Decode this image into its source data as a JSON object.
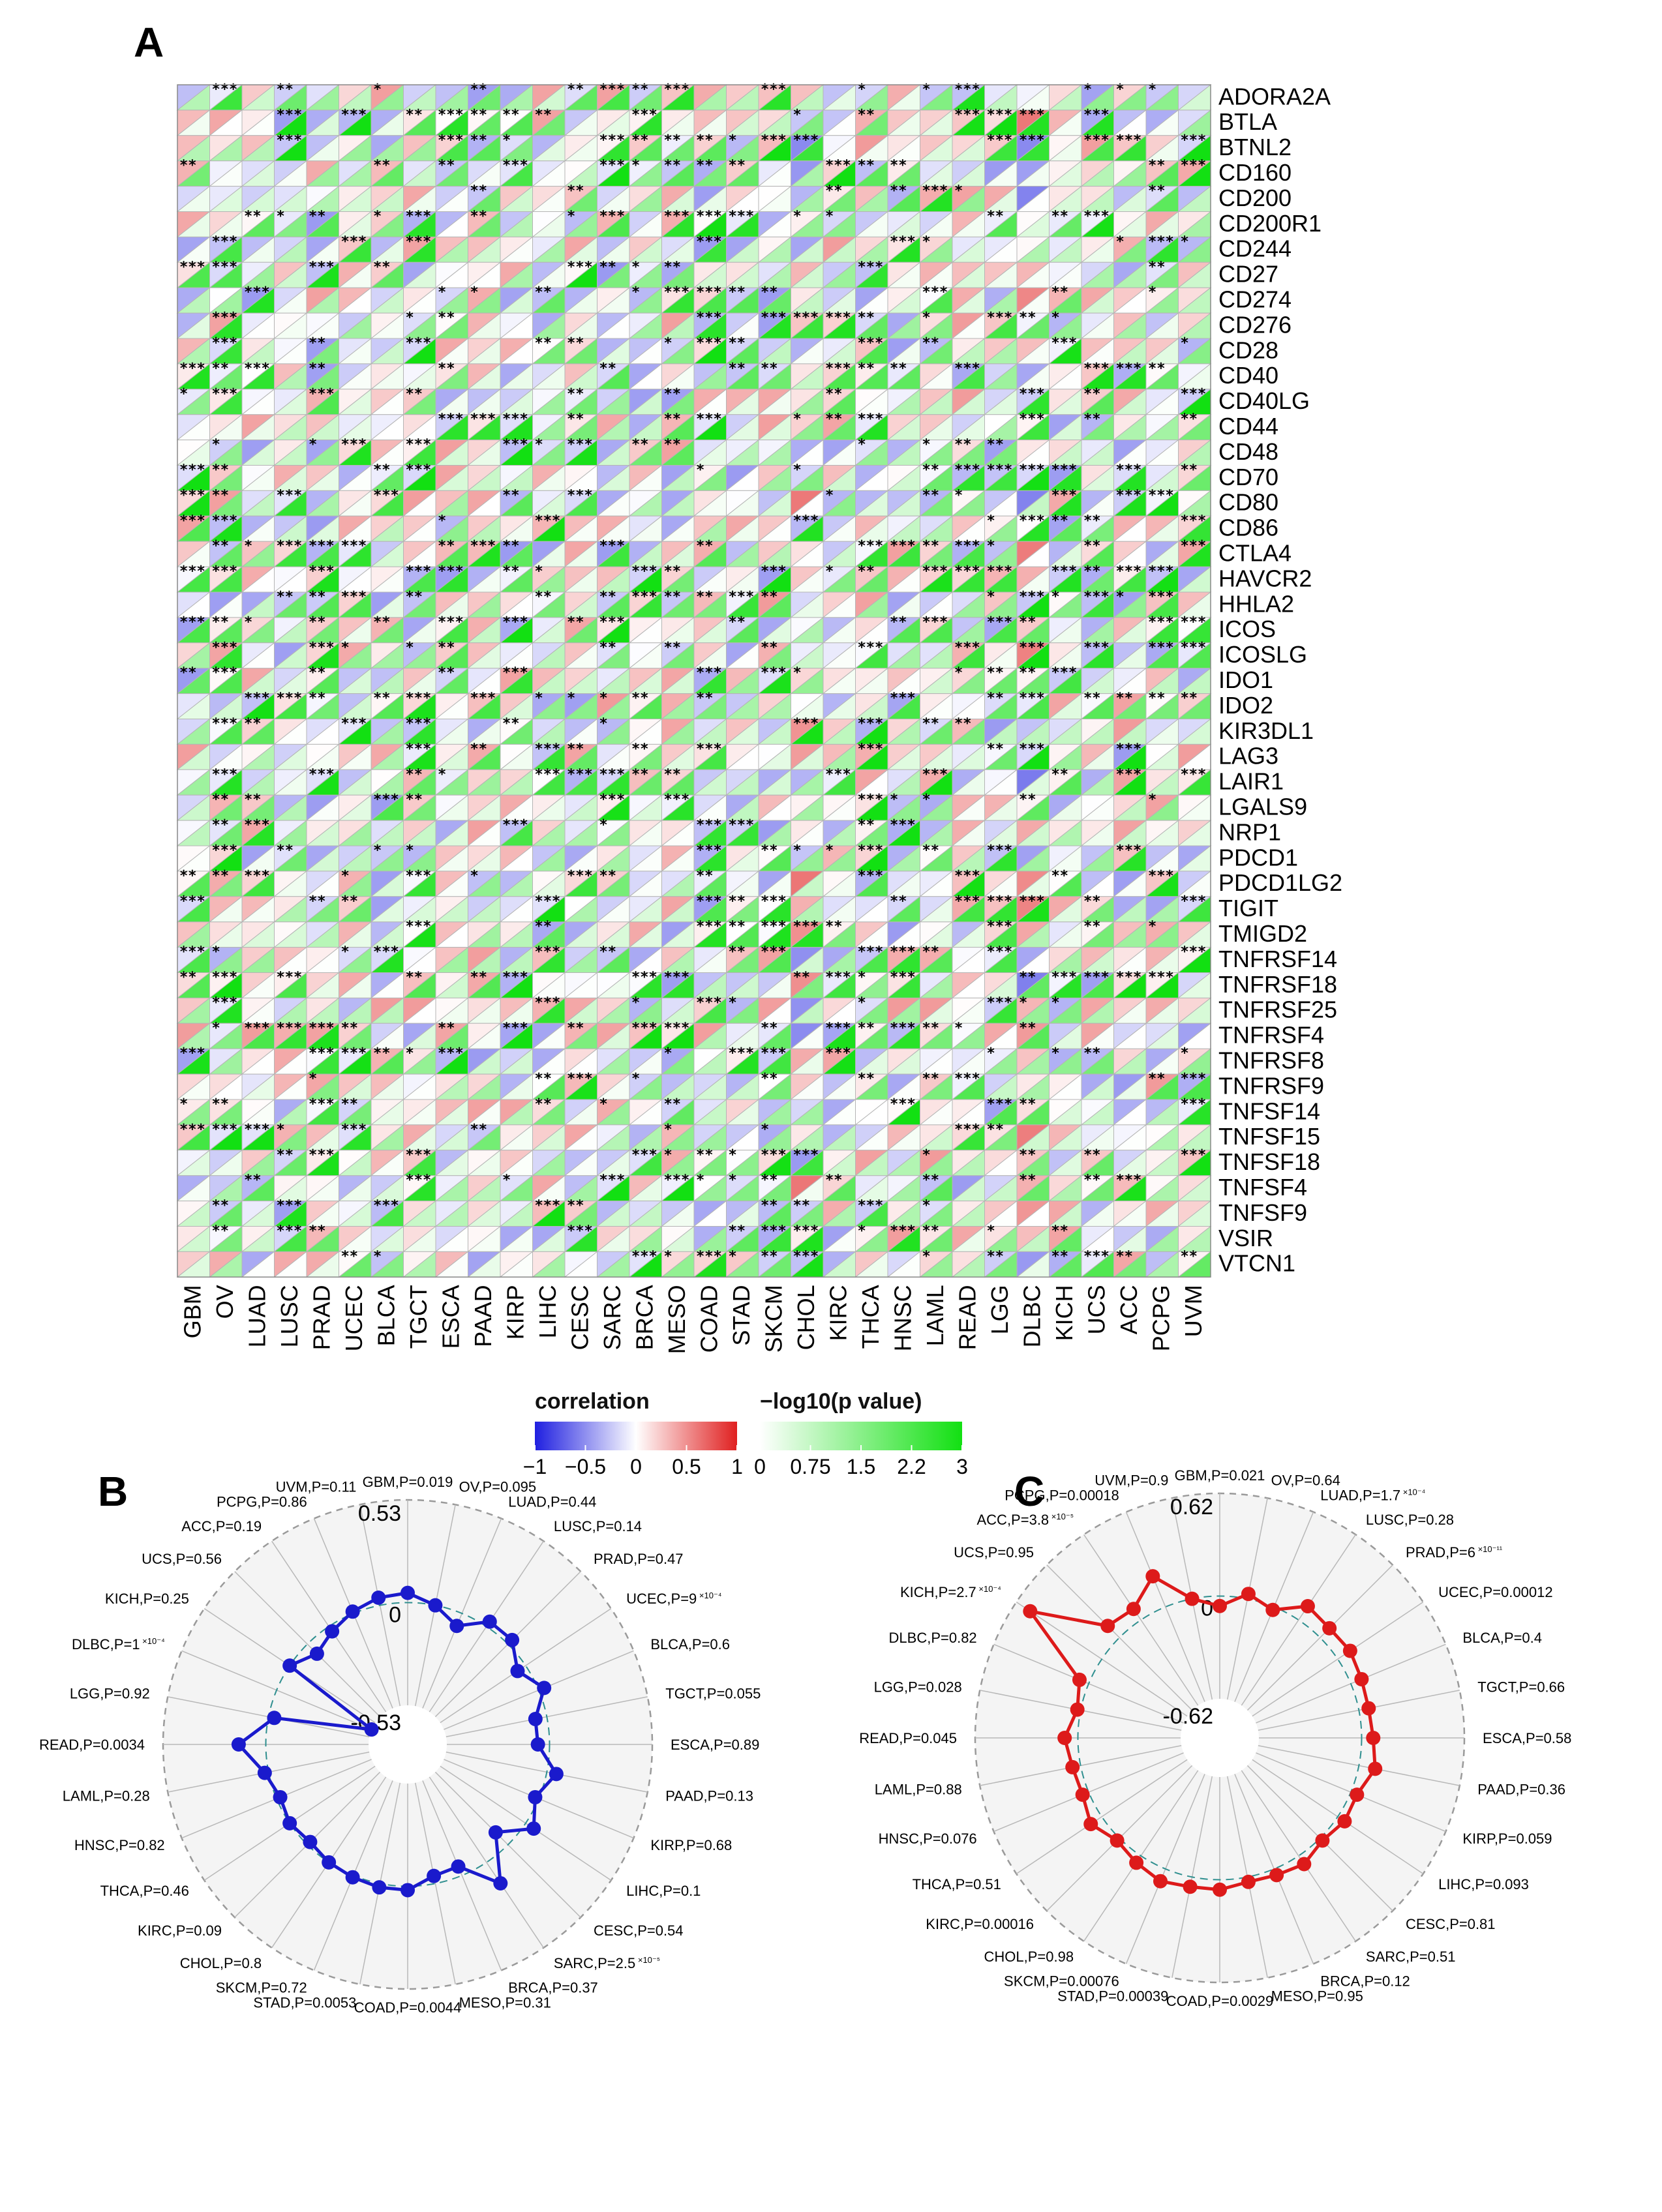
{
  "panels": {
    "a": "A",
    "b": "B",
    "c": "C"
  },
  "colors": {
    "neg": "#1f1fe0",
    "pos": "#e02020",
    "sig": "#12e012",
    "grid": "#b0b0b0",
    "radarB": "#1a1acc",
    "radarC": "#dd1a1a",
    "dashed": "#2f8f8f"
  },
  "chart_data": [
    {
      "type": "heatmap",
      "title": "",
      "genes": [
        "ADORA2A",
        "BTLA",
        "BTNL2",
        "CD160",
        "CD200",
        "CD200R1",
        "CD244",
        "CD27",
        "CD274",
        "CD276",
        "CD28",
        "CD40",
        "CD40LG",
        "CD44",
        "CD48",
        "CD70",
        "CD80",
        "CD86",
        "CTLA4",
        "HAVCR2",
        "HHLA2",
        "ICOS",
        "ICOSLG",
        "IDO1",
        "IDO2",
        "KIR3DL1",
        "LAG3",
        "LAIR1",
        "LGALS9",
        "NRP1",
        "PDCD1",
        "PDCD1LG2",
        "TIGIT",
        "TMIGD2",
        "TNFRSF14",
        "TNFRSF18",
        "TNFRSF25",
        "TNFRSF4",
        "TNFRSF8",
        "TNFRSF9",
        "TNFSF14",
        "TNFSF15",
        "TNFSF18",
        "TNFSF4",
        "TNFSF9",
        "VSIR",
        "VTCN1"
      ],
      "cancers": [
        "GBM",
        "OV",
        "LUAD",
        "LUSC",
        "PRAD",
        "UCEC",
        "BLCA",
        "TGCT",
        "ESCA",
        "PAAD",
        "KIRP",
        "LIHC",
        "CESC",
        "SARC",
        "BRCA",
        "MESO",
        "COAD",
        "STAD",
        "SKCM",
        "CHOL",
        "KIRC",
        "THCA",
        "HNSC",
        "LAML",
        "READ",
        "LGG",
        "DLBC",
        "KICH",
        "UCS",
        "ACC",
        "PCPG",
        "UVM"
      ],
      "cells": "upper-left triangle = correlation (blue -1 to red +1), lower-right triangle = -log10(p value) (white 0 to green 3); asterisks mark significance",
      "legend_correlation": {
        "title": "correlation",
        "ticks": [
          "−1",
          "−0.5",
          "0",
          "0.5",
          "1"
        ],
        "range": [
          -1,
          1
        ]
      },
      "legend_pvalue": {
        "title": "−log10(p value)",
        "ticks": [
          "0",
          "0.75",
          "1.5",
          "2.2",
          "3"
        ],
        "range": [
          0,
          3
        ]
      }
    },
    {
      "type": "radar",
      "panel": "B",
      "rmin": -0.53,
      "rmax": 0.53,
      "ring_labels": [
        "0.53",
        "0",
        "-0.53"
      ],
      "axes": [
        {
          "label": "GBM,P=0.019",
          "value": 0.05
        },
        {
          "label": "OV,P=0.095",
          "value": 0.0
        },
        {
          "label": "LUAD,P=0.44",
          "value": -0.07
        },
        {
          "label": "LUSC,P=0.14",
          "value": 0.03
        },
        {
          "label": "PRAD,P=0.47",
          "value": 0.03
        },
        {
          "label": "UCEC,P=9",
          "sup": "×10⁻⁴",
          "value": -0.05
        },
        {
          "label": "BLCA,P=0.6",
          "value": 0.03
        },
        {
          "label": "TGCT,P=0.055",
          "value": -0.06
        },
        {
          "label": "ESCA,P=0.89",
          "value": -0.06
        },
        {
          "label": "PAAD,P=0.13",
          "value": 0.05
        },
        {
          "label": "KIRP,P=0.68",
          "value": -0.02
        },
        {
          "label": "LIHC,P=0.1",
          "value": 0.05
        },
        {
          "label": "CESC,P=0.54",
          "value": -0.09
        },
        {
          "label": "SARC,P=2.5",
          "sup": "×10⁻⁵",
          "value": 0.13
        },
        {
          "label": "BRCA,P=0.37",
          "value": -0.05
        },
        {
          "label": "MESO,P=0.31",
          "value": -0.04
        },
        {
          "label": "COAD,P=0.0044",
          "value": 0.02
        },
        {
          "label": "STAD,P=0.0053",
          "value": 0.02
        },
        {
          "label": "SKCM,P=0.72",
          "value": 0.01
        },
        {
          "label": "CHOL,P=0.8",
          "value": 0.0
        },
        {
          "label": "KIRC,P=0.09",
          "value": -0.02
        },
        {
          "label": "THCA,P=0.46",
          "value": 0.0
        },
        {
          "label": "HNSC,P=0.82",
          "value": -0.02
        },
        {
          "label": "LAML,P=0.28",
          "value": 0.02
        },
        {
          "label": "READ,P=0.0034",
          "value": 0.14
        },
        {
          "label": "LGG,P=0.92",
          "value": -0.03
        },
        {
          "label": "DLBC,P=1",
          "sup": "×10⁻⁴",
          "value": -0.53
        },
        {
          "label": "KICH,P=0.25",
          "value": 0.0
        },
        {
          "label": "UCS,P=0.56",
          "value": -0.07
        },
        {
          "label": "ACC,P=0.19",
          "value": -0.03
        },
        {
          "label": "PCPG,P=0.86",
          "value": 0.01
        },
        {
          "label": "UVM,P=0.11",
          "value": 0.04
        }
      ]
    },
    {
      "type": "radar",
      "panel": "C",
      "rmin": -0.62,
      "rmax": 0.62,
      "ring_labels": [
        "0.62",
        "0",
        "-0.62"
      ],
      "axes": [
        {
          "label": "GBM,P=0.021",
          "value": -0.06
        },
        {
          "label": "OV,P=0.64",
          "value": 0.03
        },
        {
          "label": "LUAD,P=1.7",
          "sup": "×10⁻⁴",
          "value": -0.02
        },
        {
          "label": "LUSC,P=0.28",
          "value": 0.1
        },
        {
          "label": "PRAD,P=6",
          "sup": "×10⁻¹¹",
          "value": 0.08
        },
        {
          "label": "UCEC,P=0.00012",
          "value": 0.09
        },
        {
          "label": "BLCA,P=0.4",
          "value": 0.07
        },
        {
          "label": "TGCT,P=0.66",
          "value": 0.06
        },
        {
          "label": "ESCA,P=0.58",
          "value": 0.07
        },
        {
          "label": "PAAD,P=0.36",
          "value": 0.1
        },
        {
          "label": "KIRP,P=0.059",
          "value": 0.04
        },
        {
          "label": "LIHC,P=0.093",
          "value": 0.05
        },
        {
          "label": "CESC,P=0.81",
          "value": 0.02
        },
        {
          "label": "SARC,P=0.51",
          "value": 0.06
        },
        {
          "label": "BRCA,P=0.12",
          "value": 0.04
        },
        {
          "label": "MESO,P=0.95",
          "value": 0.03
        },
        {
          "label": "COAD,P=0.0029",
          "value": 0.06
        },
        {
          "label": "STAD,P=0.00039",
          "value": 0.06
        },
        {
          "label": "SKCM,P=0.00076",
          "value": 0.08
        },
        {
          "label": "CHOL,P=0.98",
          "value": 0.05
        },
        {
          "label": "KIRC,P=0.00016",
          "value": 0.02
        },
        {
          "label": "THCA,P=0.51",
          "value": 0.08
        },
        {
          "label": "HNSC,P=0.076",
          "value": 0.04
        },
        {
          "label": "LAML,P=0.88",
          "value": 0.05
        },
        {
          "label": "READ,P=0.045",
          "value": 0.08
        },
        {
          "label": "LGG,P=0.028",
          "value": 0.02
        },
        {
          "label": "DLBC,P=0.82",
          "value": 0.06
        },
        {
          "label": "KICH,P=2.7",
          "sup": "×10⁻⁴",
          "value": 0.52
        },
        {
          "label": "UCS,P=0.95",
          "value": 0.1
        },
        {
          "label": "ACC,P=3.8",
          "sup": "×10⁻⁵",
          "value": 0.08
        },
        {
          "label": "PCPG,P=0.00018",
          "value": 0.2
        },
        {
          "label": "UVM,P=0.9",
          "value": 0.0
        }
      ]
    }
  ]
}
